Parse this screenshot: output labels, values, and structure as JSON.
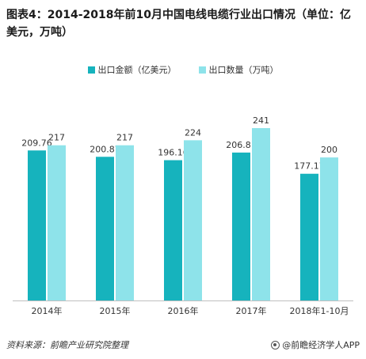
{
  "title": "图表4：2014-2018年前10月中国电线电缆行业出口情况（单位：亿美元，万吨）",
  "chart_data": {
    "type": "bar",
    "title": "图表4：2014-2018年前10月中国电线电缆行业出口情况（单位：亿美元，万吨）",
    "categories": [
      "2014年",
      "2015年",
      "2016年",
      "2017年",
      "2018年1-10月"
    ],
    "series": [
      {
        "name": "出口金额（亿美元）",
        "values": [
          209.76,
          200.87,
          196.16,
          206.81,
          177.17
        ],
        "color": "#16b3bd"
      },
      {
        "name": "出口数量（万吨）",
        "values": [
          217,
          217,
          224,
          241,
          200
        ],
        "color": "#8ee3ea"
      }
    ],
    "ylim": [
      0,
      260
    ],
    "grid": false,
    "legend": "top-center"
  },
  "footer": {
    "source": "资料来源：前瞻产业研究院整理",
    "brand": "@前瞻经济学人APP"
  }
}
